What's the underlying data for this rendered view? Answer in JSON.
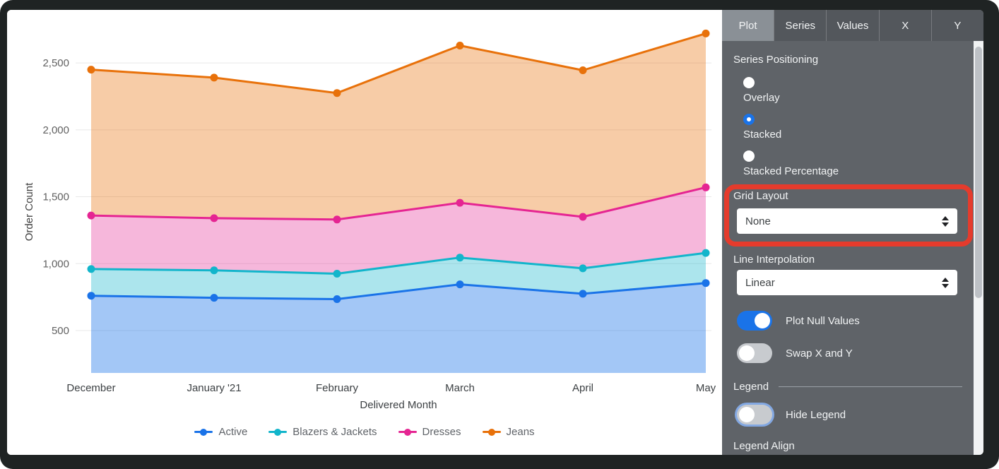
{
  "panel": {
    "tabs": [
      {
        "label": "Plot",
        "selected": true
      },
      {
        "label": "Series",
        "selected": false
      },
      {
        "label": "Values",
        "selected": false
      },
      {
        "label": "X",
        "selected": false
      },
      {
        "label": "Y",
        "selected": false
      }
    ],
    "series_positioning": {
      "label": "Series Positioning",
      "options": [
        {
          "label": "Overlay",
          "selected": false
        },
        {
          "label": "Stacked",
          "selected": true
        },
        {
          "label": "Stacked Percentage",
          "selected": false
        }
      ]
    },
    "grid_layout": {
      "label": "Grid Layout",
      "value": "None"
    },
    "line_interpolation": {
      "label": "Line Interpolation",
      "value": "Linear"
    },
    "toggles": [
      {
        "label": "Plot Null Values",
        "on": true
      },
      {
        "label": "Swap X and Y",
        "on": false
      }
    ],
    "legend_section_label": "Legend",
    "hide_legend": {
      "label": "Hide Legend",
      "on": false,
      "focus_ring": true
    },
    "legend_align_label": "Legend Align"
  },
  "annotation": {
    "shape": "rounded-rectangle",
    "color": "#E53B2C",
    "highlights": "Grid Layout"
  },
  "chart_data": {
    "type": "area",
    "stacked": true,
    "title": "",
    "xlabel": "Delivered Month",
    "ylabel": "Order Count",
    "categories": [
      "December",
      "January '21",
      "February",
      "March",
      "April",
      "May"
    ],
    "series": [
      {
        "name": "Active",
        "color": "#1A73E8",
        "values": [
          760,
          745,
          735,
          845,
          775,
          855
        ]
      },
      {
        "name": "Blazers & Jackets",
        "color": "#12B5CB",
        "values": [
          200,
          205,
          190,
          200,
          190,
          225
        ]
      },
      {
        "name": "Dresses",
        "color": "#E52592",
        "values": [
          400,
          390,
          405,
          410,
          385,
          490
        ]
      },
      {
        "name": "Jeans",
        "color": "#E8710A",
        "values": [
          1090,
          1050,
          945,
          1175,
          1095,
          1150
        ]
      }
    ],
    "stacked_totals": [
      2450,
      2390,
      2275,
      2630,
      2445,
      2720
    ],
    "y_ticks": [
      500,
      1000,
      1500,
      2000,
      2500
    ],
    "grid": "horizontal",
    "legend_position": "bottom"
  }
}
